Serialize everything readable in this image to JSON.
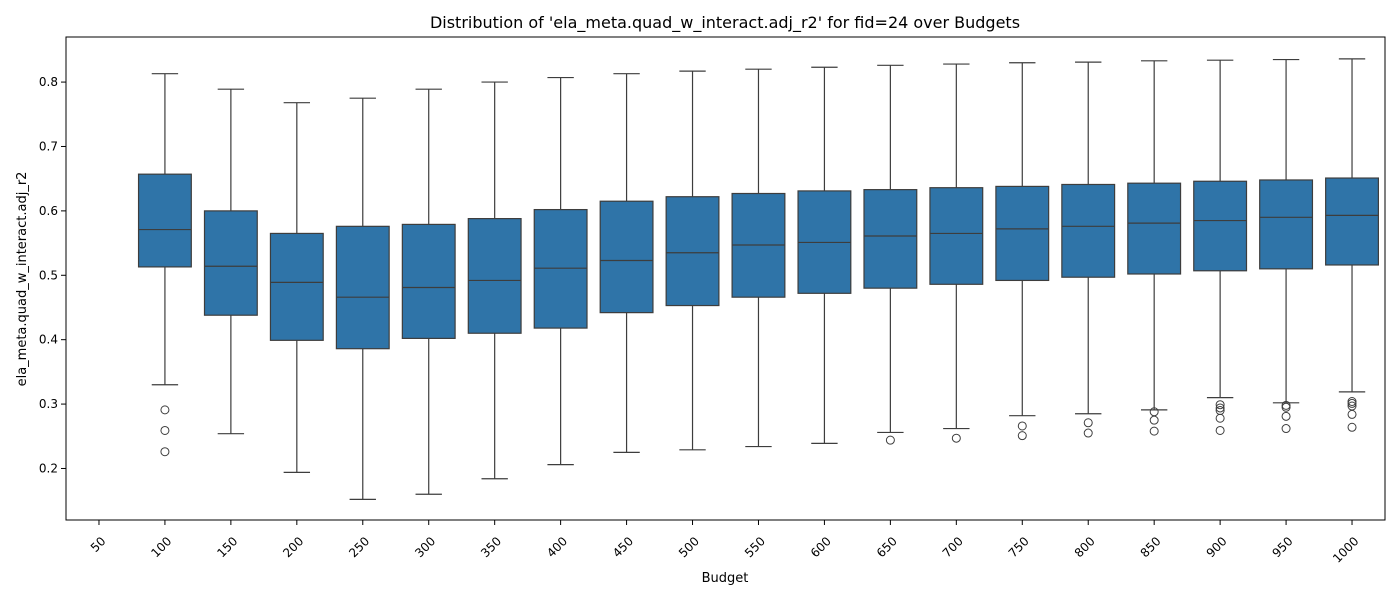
{
  "chart_data": {
    "type": "box",
    "title": "Distribution of 'ela_meta.quad_w_interact.adj_r2' for fid=24 over Budgets",
    "xlabel": "Budget",
    "ylabel": "ela_meta.quad_w_interact.adj_r2",
    "ylim": [
      0.12,
      0.87
    ],
    "yticks": [
      0.2,
      0.3,
      0.4,
      0.5,
      0.6,
      0.7,
      0.8
    ],
    "categories": [
      "50",
      "100",
      "150",
      "200",
      "250",
      "300",
      "350",
      "400",
      "450",
      "500",
      "550",
      "600",
      "650",
      "700",
      "750",
      "800",
      "850",
      "900",
      "950",
      "1000"
    ],
    "box_color": "#2f74a8",
    "boxes": [
      null,
      {
        "whisker_low": 0.33,
        "q1": 0.513,
        "median": 0.571,
        "q3": 0.657,
        "whisker_high": 0.813,
        "outliers": [
          0.291,
          0.259,
          0.226
        ]
      },
      {
        "whisker_low": 0.254,
        "q1": 0.438,
        "median": 0.514,
        "q3": 0.6,
        "whisker_high": 0.789,
        "outliers": []
      },
      {
        "whisker_low": 0.194,
        "q1": 0.399,
        "median": 0.489,
        "q3": 0.565,
        "whisker_high": 0.768,
        "outliers": []
      },
      {
        "whisker_low": 0.152,
        "q1": 0.386,
        "median": 0.466,
        "q3": 0.576,
        "whisker_high": 0.775,
        "outliers": []
      },
      {
        "whisker_low": 0.16,
        "q1": 0.402,
        "median": 0.481,
        "q3": 0.579,
        "whisker_high": 0.789,
        "outliers": []
      },
      {
        "whisker_low": 0.184,
        "q1": 0.41,
        "median": 0.492,
        "q3": 0.588,
        "whisker_high": 0.8,
        "outliers": []
      },
      {
        "whisker_low": 0.206,
        "q1": 0.418,
        "median": 0.511,
        "q3": 0.602,
        "whisker_high": 0.807,
        "outliers": []
      },
      {
        "whisker_low": 0.225,
        "q1": 0.442,
        "median": 0.523,
        "q3": 0.615,
        "whisker_high": 0.813,
        "outliers": []
      },
      {
        "whisker_low": 0.229,
        "q1": 0.453,
        "median": 0.535,
        "q3": 0.622,
        "whisker_high": 0.817,
        "outliers": []
      },
      {
        "whisker_low": 0.234,
        "q1": 0.466,
        "median": 0.547,
        "q3": 0.627,
        "whisker_high": 0.82,
        "outliers": []
      },
      {
        "whisker_low": 0.239,
        "q1": 0.472,
        "median": 0.551,
        "q3": 0.631,
        "whisker_high": 0.823,
        "outliers": []
      },
      {
        "whisker_low": 0.256,
        "q1": 0.48,
        "median": 0.561,
        "q3": 0.633,
        "whisker_high": 0.826,
        "outliers": [
          0.244
        ]
      },
      {
        "whisker_low": 0.262,
        "q1": 0.486,
        "median": 0.565,
        "q3": 0.636,
        "whisker_high": 0.828,
        "outliers": [
          0.247
        ]
      },
      {
        "whisker_low": 0.282,
        "q1": 0.492,
        "median": 0.572,
        "q3": 0.638,
        "whisker_high": 0.83,
        "outliers": [
          0.266,
          0.251
        ]
      },
      {
        "whisker_low": 0.285,
        "q1": 0.497,
        "median": 0.576,
        "q3": 0.641,
        "whisker_high": 0.831,
        "outliers": [
          0.271,
          0.255
        ]
      },
      {
        "whisker_low": 0.291,
        "q1": 0.502,
        "median": 0.581,
        "q3": 0.643,
        "whisker_high": 0.833,
        "outliers": [
          0.288,
          0.275,
          0.258
        ]
      },
      {
        "whisker_low": 0.31,
        "q1": 0.507,
        "median": 0.585,
        "q3": 0.646,
        "whisker_high": 0.834,
        "outliers": [
          0.299,
          0.294,
          0.29,
          0.278,
          0.259
        ]
      },
      {
        "whisker_low": 0.302,
        "q1": 0.51,
        "median": 0.59,
        "q3": 0.648,
        "whisker_high": 0.835,
        "outliers": [
          0.298,
          0.295,
          0.281,
          0.262
        ]
      },
      {
        "whisker_low": 0.319,
        "q1": 0.516,
        "median": 0.593,
        "q3": 0.651,
        "whisker_high": 0.836,
        "outliers": [
          0.304,
          0.301,
          0.297,
          0.284,
          0.264
        ]
      }
    ]
  }
}
